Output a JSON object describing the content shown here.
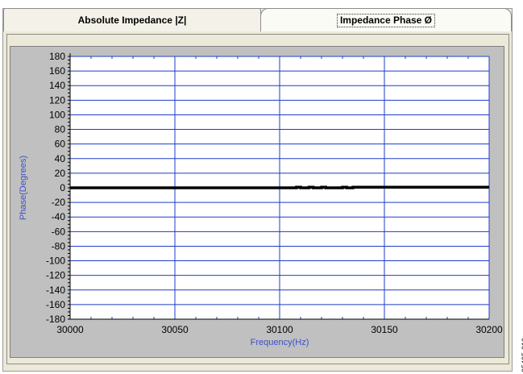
{
  "tabs": [
    {
      "label": "Absolute Impedance |Z|",
      "active": false
    },
    {
      "label": "Impedance Phase  Ø",
      "active": true
    }
  ],
  "figure_code": "05435-019",
  "chart_data": {
    "type": "line",
    "title": "",
    "xlabel": "Frequency(Hz)",
    "ylabel": "Phase(Degrees)",
    "xlim": [
      30000,
      30200
    ],
    "ylim": [
      -180,
      180
    ],
    "x_ticks": [
      "30000",
      "30050",
      "30100",
      "30150",
      "30200"
    ],
    "y_ticks": [
      "180",
      "160",
      "140",
      "120",
      "100",
      "80",
      "60",
      "40",
      "20",
      "0",
      "-20",
      "-40",
      "-60",
      "-80",
      "-100",
      "-120",
      "-140",
      "-160",
      "-180"
    ],
    "grid": true,
    "colors": {
      "plot_bg": "#ffffff",
      "grid": "#1e3cc8",
      "line": "#000000",
      "axis_label": "#3c50c8"
    },
    "series": [
      {
        "x": [
          30000,
          30108,
          30108,
          30110,
          30110,
          30114,
          30114,
          30116,
          30116,
          30120,
          30120,
          30122,
          30122,
          30130,
          30130,
          30132,
          30132,
          30135,
          30135,
          30200
        ],
        "y": [
          0,
          0,
          0.8,
          0.8,
          0,
          0,
          0.8,
          0.8,
          0,
          0,
          0.8,
          0.8,
          0,
          0,
          0.8,
          0.8,
          0,
          0,
          0.8,
          0.8
        ]
      }
    ]
  }
}
